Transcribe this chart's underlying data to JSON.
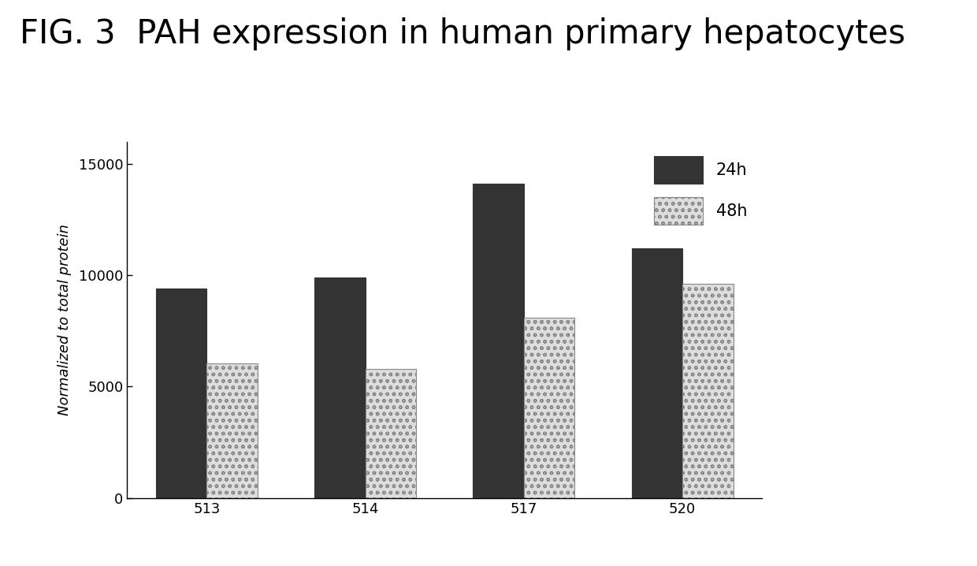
{
  "title": "FIG. 3  PAH expression in human primary hepatocytes",
  "categories": [
    "513",
    "514",
    "517",
    "520"
  ],
  "values_24h": [
    9400,
    9900,
    14100,
    11200
  ],
  "values_48h": [
    6050,
    5800,
    8100,
    9600
  ],
  "ylabel": "Normalized to total protein",
  "ylim": [
    0,
    16000
  ],
  "yticks": [
    0,
    5000,
    10000,
    15000
  ],
  "color_24h": "#333333",
  "color_48h": "#dddddd",
  "legend_24h": "24h",
  "legend_48h": "48h",
  "bar_width": 0.32,
  "title_fontsize": 30,
  "axis_fontsize": 13,
  "tick_fontsize": 13,
  "legend_fontsize": 15,
  "background_color": "#ffffff"
}
